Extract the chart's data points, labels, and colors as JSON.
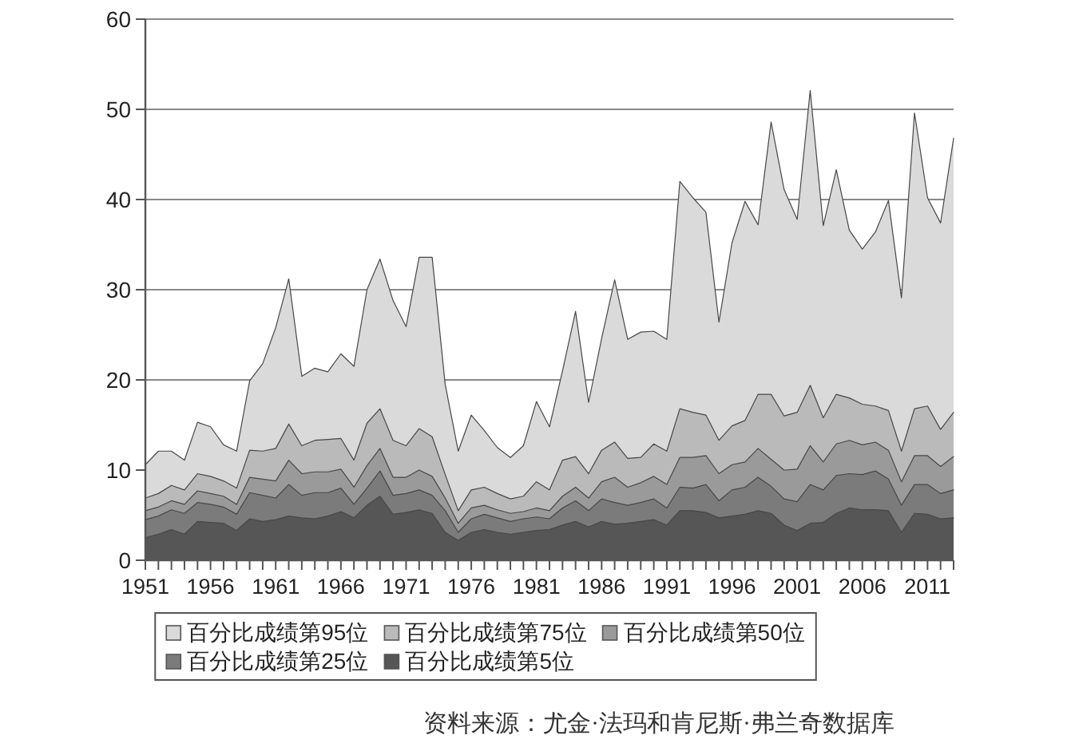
{
  "chart_data": {
    "type": "area",
    "x": [
      1951,
      1952,
      1953,
      1954,
      1955,
      1956,
      1957,
      1958,
      1959,
      1960,
      1961,
      1962,
      1963,
      1964,
      1965,
      1966,
      1967,
      1968,
      1969,
      1970,
      1971,
      1972,
      1973,
      1974,
      1975,
      1976,
      1977,
      1978,
      1979,
      1980,
      1981,
      1982,
      1983,
      1984,
      1985,
      1986,
      1987,
      1988,
      1989,
      1990,
      1991,
      1992,
      1993,
      1994,
      1995,
      1996,
      1997,
      1998,
      1999,
      2000,
      2001,
      2002,
      2003,
      2004,
      2005,
      2006,
      2007,
      2008,
      2009,
      2010,
      2011,
      2012,
      2013
    ],
    "series": [
      {
        "name": "百分比成绩第95位",
        "color": "#dadada",
        "values": [
          10.6,
          12.1,
          12.1,
          11.1,
          15.3,
          14.8,
          12.8,
          12.1,
          19.9,
          21.8,
          25.8,
          31.2,
          20.4,
          21.3,
          20.9,
          22.9,
          21.5,
          30,
          33.4,
          28.8,
          25.9,
          33.6,
          33.6,
          19.5,
          12.1,
          16.1,
          14.4,
          12.5,
          11.4,
          12.7,
          17.6,
          14.8,
          21,
          27.6,
          17.5,
          24.6,
          31.1,
          24.5,
          25.3,
          25.4,
          24.5,
          42,
          40.2,
          38.6,
          26.4,
          35.2,
          39.8,
          37.2,
          48.6,
          41.1,
          37.8,
          52.1,
          37.1,
          43.3,
          36.6,
          34.5,
          36.4,
          39.9,
          29.1,
          49.6,
          40.2,
          37.4,
          46.8
        ]
      },
      {
        "name": "百分比成绩第75位",
        "color": "#bababa",
        "values": [
          6.9,
          7.4,
          8.3,
          7.8,
          9.6,
          9.3,
          8.8,
          8,
          12.2,
          12.1,
          12.4,
          15.1,
          12.7,
          13.3,
          13.4,
          13.5,
          11.1,
          15.2,
          16.8,
          13.3,
          12.7,
          14.6,
          13.7,
          9.5,
          5.5,
          7.8,
          8.1,
          7.4,
          6.8,
          7.1,
          8.7,
          7.8,
          11.1,
          11.5,
          9.6,
          12.2,
          13.1,
          11.3,
          11.4,
          12.9,
          12.1,
          16.8,
          16.4,
          16.1,
          13.3,
          14.9,
          15.5,
          18.4,
          18.4,
          16,
          16.4,
          19.4,
          15.8,
          18.4,
          18,
          17.3,
          17.1,
          16.6,
          12.1,
          16.8,
          17.1,
          14.5,
          16.4
        ]
      },
      {
        "name": "百分比成绩第50位",
        "color": "#9a9a9a",
        "values": [
          5.5,
          5.9,
          6.6,
          6.2,
          7.7,
          7.4,
          7.1,
          6.2,
          9.2,
          9,
          8.8,
          11.1,
          9.6,
          9.8,
          9.8,
          10.1,
          8.1,
          10.5,
          12.4,
          9.2,
          9.2,
          10,
          9.3,
          6.9,
          4.1,
          5.8,
          6.1,
          5.6,
          5.2,
          5.4,
          5.8,
          5.5,
          7.1,
          8.1,
          6.9,
          8.7,
          9.2,
          8.1,
          8.6,
          9.3,
          8.4,
          11.4,
          11.4,
          11.6,
          9.6,
          10.6,
          10.9,
          12.4,
          11.2,
          10,
          10.1,
          12.7,
          10.9,
          12.9,
          13.3,
          12.8,
          13.1,
          12.2,
          8.7,
          11.6,
          11.6,
          10.4,
          11.5
        ]
      },
      {
        "name": "百分比成绩第25位",
        "color": "#7b7b7b",
        "values": [
          4.5,
          4.9,
          5.6,
          5.2,
          6.4,
          6.2,
          5.9,
          5.1,
          7.5,
          7.2,
          6.9,
          8.4,
          7.2,
          7.5,
          7.5,
          8,
          6.2,
          8,
          9.9,
          7.2,
          7.4,
          7.8,
          7.2,
          5.5,
          3.1,
          4.6,
          5.1,
          4.7,
          4.3,
          4.6,
          4.8,
          4.6,
          5.8,
          6.6,
          5.5,
          6.8,
          6.4,
          6.1,
          6.4,
          6.8,
          5.8,
          8.1,
          8,
          8.4,
          6.6,
          7.8,
          8.1,
          9.2,
          8.2,
          6.8,
          6.5,
          8.4,
          7.8,
          9.4,
          9.6,
          9.5,
          9.9,
          9,
          6.1,
          8.4,
          8.4,
          7.4,
          7.8
        ]
      },
      {
        "name": "百分比成绩第5位",
        "color": "#565656",
        "values": [
          2.5,
          2.9,
          3.4,
          2.9,
          4.3,
          4.2,
          4.1,
          3.3,
          4.6,
          4.3,
          4.5,
          4.9,
          4.7,
          4.6,
          4.9,
          5.4,
          4.7,
          6.1,
          7.1,
          5.1,
          5.3,
          5.6,
          5.2,
          3.1,
          2.2,
          3.1,
          3.4,
          3.1,
          2.9,
          3.1,
          3.3,
          3.4,
          3.9,
          4.3,
          3.7,
          4.3,
          4,
          4.1,
          4.3,
          4.5,
          3.9,
          5.5,
          5.5,
          5.3,
          4.7,
          4.9,
          5.1,
          5.5,
          5.2,
          3.9,
          3.3,
          4.1,
          4.2,
          5.2,
          5.8,
          5.6,
          5.6,
          5.5,
          3.1,
          5.2,
          5.1,
          4.6,
          4.7
        ]
      }
    ],
    "xlim": [
      1951,
      2013
    ],
    "xticks": [
      1951,
      {
        "value": 1952,
        "label": null
      },
      {
        "value": 1953,
        "label": null
      },
      {
        "value": 1954,
        "label": null
      },
      {
        "value": 1955,
        "label": null
      },
      1956,
      {
        "value": 1957,
        "label": null
      },
      {
        "value": 1958,
        "label": null
      },
      {
        "value": 1959,
        "label": null
      },
      {
        "value": 1960,
        "label": null
      },
      1961,
      {
        "value": 1962,
        "label": null
      },
      {
        "value": 1963,
        "label": null
      },
      {
        "value": 1964,
        "label": null
      },
      {
        "value": 1965,
        "label": null
      },
      1966,
      {
        "value": 1967,
        "label": null
      },
      {
        "value": 1968,
        "label": null
      },
      {
        "value": 1969,
        "label": null
      },
      {
        "value": 1970,
        "label": null
      },
      1971,
      {
        "value": 1972,
        "label": null
      },
      {
        "value": 1973,
        "label": null
      },
      {
        "value": 1974,
        "label": null
      },
      {
        "value": 1975,
        "label": null
      },
      1976,
      {
        "value": 1977,
        "label": null
      },
      {
        "value": 1978,
        "label": null
      },
      {
        "value": 1979,
        "label": null
      },
      {
        "value": 1980,
        "label": null
      },
      1981,
      {
        "value": 1982,
        "label": null
      },
      {
        "value": 1983,
        "label": null
      },
      {
        "value": 1984,
        "label": null
      },
      {
        "value": 1985,
        "label": null
      },
      1986,
      {
        "value": 1987,
        "label": null
      },
      {
        "value": 1988,
        "label": null
      },
      {
        "value": 1989,
        "label": null
      },
      {
        "value": 1990,
        "label": null
      },
      1991,
      {
        "value": 1992,
        "label": null
      },
      {
        "value": 1993,
        "label": null
      },
      {
        "value": 1994,
        "label": null
      },
      {
        "value": 1995,
        "label": null
      },
      1996,
      {
        "value": 1997,
        "label": null
      },
      {
        "value": 1998,
        "label": null
      },
      {
        "value": 1999,
        "label": null
      },
      {
        "value": 2000,
        "label": null
      },
      2001,
      {
        "value": 2002,
        "label": null
      },
      {
        "value": 2003,
        "label": null
      },
      {
        "value": 2004,
        "label": null
      },
      {
        "value": 2005,
        "label": null
      },
      2006,
      {
        "value": 2007,
        "label": null
      },
      {
        "value": 2008,
        "label": null
      },
      {
        "value": 2009,
        "label": null
      },
      {
        "value": 2010,
        "label": null
      },
      2011,
      {
        "value": 2012,
        "label": null
      },
      {
        "value": 2013,
        "label": null
      }
    ],
    "ylim": [
      0,
      60
    ],
    "yticks": [
      0,
      10,
      20,
      30,
      40,
      50,
      60
    ],
    "grid": "y",
    "legend": "bottom",
    "annotations": [
      "资料来源：尤金·法玛和肯尼斯·弗兰奇数据库"
    ]
  }
}
